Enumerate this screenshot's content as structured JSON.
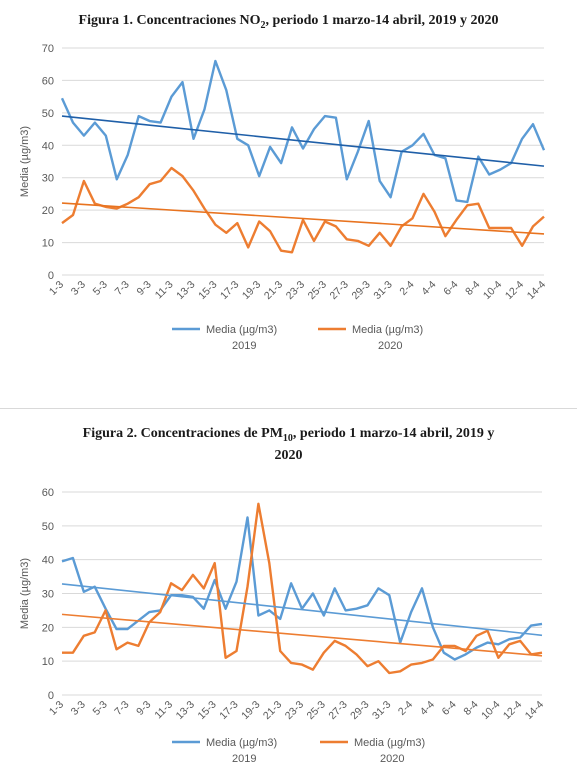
{
  "chart_data": [
    {
      "type": "line",
      "title_parts": [
        "Figura 1. Concentraciones NO",
        "2",
        ", periodo 1 marzo-14 abril, 2019 y 2020"
      ],
      "ylabel": "Media (µg/m3)",
      "ylim": [
        0,
        70
      ],
      "yticks": [
        0,
        10,
        20,
        30,
        40,
        50,
        60,
        70
      ],
      "xtick_labels": [
        "1-3",
        "3-3",
        "5-3",
        "7-3",
        "9-3",
        "11-3",
        "13-3",
        "15-3",
        "17-3",
        "19-3",
        "21-3",
        "23-3",
        "25-3",
        "27-3",
        "29-3",
        "31-3",
        "2-4",
        "4-4",
        "6-4",
        "8-4",
        "10-4",
        "12-4",
        "14-4"
      ],
      "grid": true,
      "legend": "bottom",
      "series": [
        {
          "name_line1": "Media (µg/m3)",
          "name_line2": "2019",
          "color": "#5b9bd5",
          "trend_color": "#1f5fa8",
          "values": [
            54.5,
            47,
            43,
            47,
            43,
            29.5,
            37,
            49,
            47.5,
            47,
            55,
            59.5,
            42,
            51,
            66,
            57,
            42,
            40,
            30.5,
            39.5,
            34.5,
            45.5,
            39,
            45,
            49,
            48.5,
            29.5,
            38,
            47.5,
            29,
            24,
            38,
            40,
            43.5,
            37,
            36,
            23,
            22.5,
            36.5,
            31,
            32.5,
            34.5,
            42,
            46.5,
            38.5
          ]
        },
        {
          "name_line1": "Media (µg/m3)",
          "name_line2": "2020",
          "color": "#ed7d31",
          "trend_color": "#e8731f",
          "values": [
            16,
            18.5,
            29,
            22,
            21,
            20.5,
            22,
            24,
            28,
            29,
            33,
            30.5,
            26,
            20.5,
            15.5,
            13,
            16,
            8.5,
            16.5,
            13.5,
            7.5,
            7,
            17,
            10.5,
            16.5,
            15,
            11,
            10.5,
            9,
            13,
            9,
            15,
            17.5,
            25,
            19.5,
            12,
            17,
            21.5,
            22,
            14.5,
            14.5,
            14.5,
            9,
            15,
            18
          ]
        }
      ]
    },
    {
      "type": "line",
      "title_parts": [
        "Figura 2. Concentraciones de PM",
        "10",
        ", periodo 1 marzo-14 abril, 2019 y",
        "2020"
      ],
      "ylabel": "Media (µg/m3)",
      "ylim": [
        0,
        60
      ],
      "yticks": [
        0,
        10,
        20,
        30,
        40,
        50,
        60
      ],
      "xtick_labels": [
        "1-3",
        "3-3",
        "5-3",
        "7-3",
        "9-3",
        "11-3",
        "13-3",
        "15-3",
        "17-3",
        "19-3",
        "21-3",
        "23-3",
        "25-3",
        "27-3",
        "29-3",
        "31-3",
        "2-4",
        "4-4",
        "6-4",
        "8-4",
        "10-4",
        "12-4",
        "14-4"
      ],
      "grid": true,
      "legend": "bottom",
      "series": [
        {
          "name_line1": "Media (µg/m3)",
          "name_line2": "2019",
          "color": "#5b9bd5",
          "trend_color": "#5b9bd5",
          "values": [
            39.5,
            40.5,
            30.5,
            32,
            25.5,
            19.5,
            19.5,
            22,
            24.5,
            25,
            29.5,
            29.5,
            29,
            25.5,
            34,
            25.5,
            33.5,
            52.5,
            23.5,
            25,
            22.5,
            33,
            25.5,
            30,
            23.5,
            31.5,
            25,
            25.5,
            26.5,
            31.5,
            29.5,
            15.5,
            24.5,
            31.5,
            20,
            12.5,
            10.5,
            12,
            14,
            15.5,
            15,
            16.5,
            17,
            20.5,
            21
          ]
        },
        {
          "name_line1": "Media (µg/m3)",
          "name_line2": "2020",
          "color": "#ed7d31",
          "trend_color": "#ed7d31",
          "values": [
            12.5,
            12.5,
            17.5,
            18.5,
            25,
            13.5,
            15.5,
            14.5,
            21.5,
            24.5,
            33,
            31,
            35.5,
            31.5,
            39,
            11,
            13,
            32,
            56.5,
            39,
            13,
            9.5,
            9,
            7.5,
            12.5,
            16,
            14.5,
            12,
            8.5,
            10,
            6.5,
            7,
            9,
            9.5,
            10.5,
            14.5,
            14.5,
            13,
            17.5,
            19,
            11,
            15,
            16,
            12,
            12.5
          ]
        }
      ]
    }
  ]
}
